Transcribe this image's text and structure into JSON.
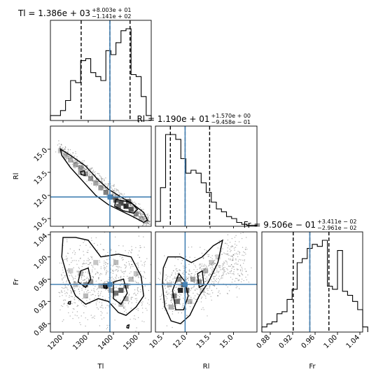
{
  "chart_data": {
    "type": "corner",
    "parameters": [
      "Tl",
      "Rl",
      "Fr"
    ],
    "axis_labels": [
      "Tl",
      "Rl",
      "Fr"
    ],
    "titles": [
      {
        "param": "Tl",
        "base": "Tl = 1.386e + 03",
        "sup": "+8.003e + 01",
        "sub": "−1.141e + 02"
      },
      {
        "param": "Rl",
        "base": "Rl = 1.190e + 01",
        "sup": "+1.570e + 00",
        "sub": "−9.458e − 01"
      },
      {
        "param": "Fr",
        "base": "Fr = 9.506e − 01",
        "sup": "+3.411e − 02",
        "sub": "−2.961e − 02"
      }
    ],
    "ranges": {
      "Tl": [
        1150,
        1550
      ],
      "Rl": [
        10.0,
        16.5
      ],
      "Fr": [
        0.865,
        1.045
      ]
    },
    "ticks": {
      "Tl": {
        "values": [
          1200,
          1300,
          1400,
          1500
        ],
        "labels": [
          "1200",
          "1300",
          "1400",
          "1500"
        ]
      },
      "Rl": {
        "values": [
          10.5,
          12.0,
          13.5,
          15.0
        ],
        "labels": [
          "10.5",
          "12.0",
          "13.5",
          "15.0"
        ]
      },
      "Fr": {
        "values": [
          0.88,
          0.92,
          0.96,
          1.0,
          1.04
        ],
        "labels": [
          "0.88",
          "0.92",
          "0.96",
          "1.00",
          "1.04"
        ]
      }
    },
    "truth": {
      "Tl": 1386,
      "Rl": 11.9,
      "Fr": 0.9506
    },
    "quantiles": {
      "Tl": [
        1272,
        1386,
        1466
      ],
      "Rl": [
        10.955,
        11.9,
        13.47
      ],
      "Fr": [
        0.921,
        0.9506,
        0.9847
      ]
    },
    "hist": {
      "Tl": {
        "edges_start": 1150,
        "edges_step": 20,
        "counts": [
          5,
          5,
          10,
          20,
          40,
          38,
          60,
          62,
          48,
          44,
          40,
          70,
          66,
          78,
          90,
          92,
          46,
          44,
          24,
          5
        ]
      },
      "Rl": {
        "edges_start": 10.0,
        "edges_step": 0.325,
        "counts": [
          5,
          40,
          95,
          95,
          90,
          70,
          55,
          58,
          55,
          45,
          35,
          25,
          18,
          15,
          10,
          8,
          4,
          2,
          1,
          1
        ]
      },
      "Fr": {
        "edges_start": 0.865,
        "edges_step": 0.009,
        "counts": [
          5,
          8,
          10,
          18,
          20,
          32,
          42,
          68,
          72,
          82,
          86,
          84,
          90,
          45,
          42,
          80,
          40,
          36,
          30,
          22,
          5
        ]
      }
    }
  }
}
